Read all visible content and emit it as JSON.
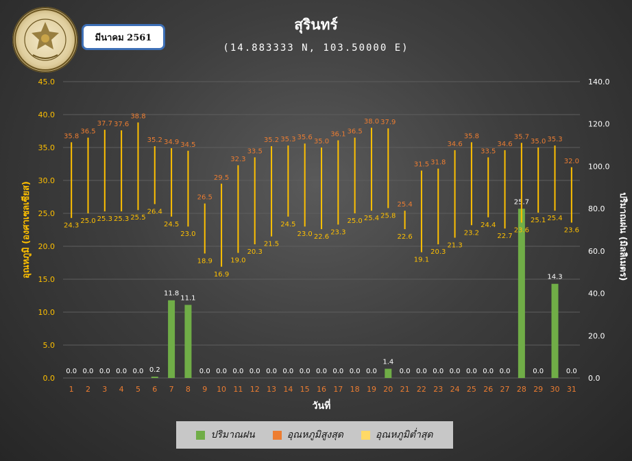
{
  "header": {
    "title": "สุรินทร์",
    "subtitle": "(14.883333 N, 103.50000 E)",
    "month_label": "มีนาคม 2561",
    "logo_text": "กรมอุตุนิยมวิทยา METEOROLOGICAL DEPARTMENT"
  },
  "colors": {
    "rain": "#70ad47",
    "max_label": "#ed7d31",
    "min_label": "#ffc000",
    "range_line": "#ffc000",
    "grid": "#5e5e5e",
    "left_axis": "#ffc000",
    "right_axis": "#ffffff"
  },
  "legend": {
    "rain": "ปริมาณฝน",
    "tmax": "อุณหภูมิสูงสุด",
    "tmin": "อุณหภูมิต่ำสุด"
  },
  "chart_data": {
    "type": "bar",
    "title": "สุรินทร์",
    "xlabel": "วันที่",
    "ylabel_left": "อุณหภูมิ (องศาเซลเซียส)",
    "ylabel_right": "ปริมาณฝน (มิลลิเมตร)",
    "ylim_left": [
      0,
      45
    ],
    "ylim_right": [
      0,
      140
    ],
    "yticks_left": [
      "0.0",
      "5.0",
      "10.0",
      "15.0",
      "20.0",
      "25.0",
      "30.0",
      "35.0",
      "40.0",
      "45.0"
    ],
    "yticks_right": [
      "0.0",
      "20.0",
      "40.0",
      "60.0",
      "80.0",
      "100.0",
      "120.0",
      "140.0"
    ],
    "grid": true,
    "legend_position": "bottom",
    "categories": [
      "1",
      "2",
      "3",
      "4",
      "5",
      "6",
      "7",
      "8",
      "9",
      "10",
      "11",
      "12",
      "13",
      "14",
      "15",
      "16",
      "17",
      "18",
      "19",
      "20",
      "21",
      "22",
      "23",
      "24",
      "25",
      "26",
      "27",
      "28",
      "29",
      "30",
      "31"
    ],
    "series": [
      {
        "name": "ปริมาณฝน",
        "type": "bar",
        "values": [
          0.0,
          0.0,
          0.0,
          0.0,
          0.0,
          0.2,
          11.8,
          11.1,
          0.0,
          0.0,
          0.0,
          0.0,
          0.0,
          0.0,
          0.0,
          0.0,
          0.0,
          0.0,
          0.0,
          1.4,
          0.0,
          0.0,
          0.0,
          0.0,
          0.0,
          0.0,
          0.0,
          25.7,
          0.0,
          14.3,
          0.0
        ]
      },
      {
        "name": "อุณหภูมิสูงสุด",
        "type": "high",
        "values": [
          35.8,
          36.5,
          37.7,
          37.6,
          38.8,
          35.2,
          34.9,
          34.5,
          26.5,
          29.5,
          32.3,
          33.5,
          35.2,
          35.3,
          35.6,
          35.0,
          36.1,
          36.5,
          38.0,
          37.9,
          25.4,
          31.5,
          31.8,
          34.6,
          35.8,
          33.5,
          34.6,
          35.7,
          35.0,
          35.3,
          32.0
        ]
      },
      {
        "name": "อุณหภูมิต่ำสุด",
        "type": "low",
        "values": [
          24.3,
          25.0,
          25.3,
          25.3,
          25.5,
          26.4,
          24.5,
          23.0,
          18.9,
          16.9,
          19.0,
          20.3,
          21.5,
          24.5,
          23.0,
          22.6,
          23.3,
          25.0,
          25.4,
          25.8,
          22.6,
          19.1,
          20.3,
          21.3,
          23.2,
          24.4,
          22.7,
          23.6,
          25.1,
          25.4,
          23.6
        ]
      }
    ]
  }
}
